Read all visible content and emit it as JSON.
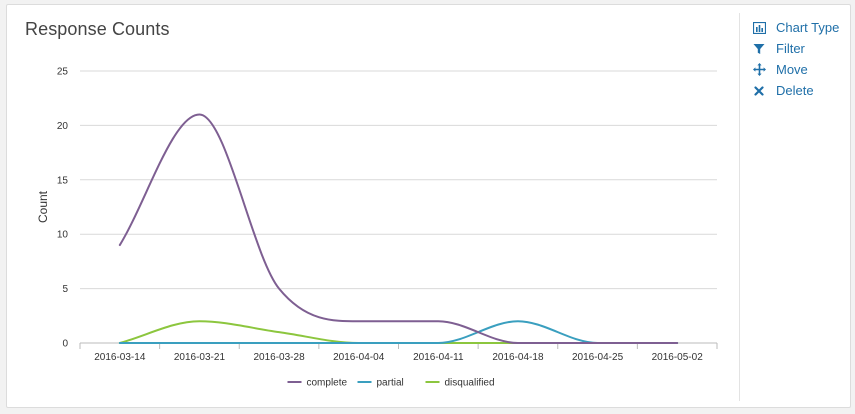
{
  "panel": {
    "title": "Response Counts"
  },
  "actions": [
    {
      "label": "Chart Type",
      "icon": "bar-chart-icon"
    },
    {
      "label": "Filter",
      "icon": "filter-icon"
    },
    {
      "label": "Move",
      "icon": "move-icon"
    },
    {
      "label": "Delete",
      "icon": "delete-icon"
    }
  ],
  "colors": {
    "accent": "#1f6fa8"
  },
  "chart_data": {
    "type": "line",
    "title": "",
    "xlabel": "",
    "ylabel": "Count",
    "categories": [
      "2016-03-14",
      "2016-03-21",
      "2016-03-28",
      "2016-04-04",
      "2016-04-11",
      "2016-04-18",
      "2016-04-25",
      "2016-05-02"
    ],
    "ylim": [
      0,
      25
    ],
    "yticks": [
      0,
      5,
      10,
      15,
      20,
      25
    ],
    "grid": true,
    "legend": "bottom",
    "smooth": true,
    "series": [
      {
        "name": "complete",
        "color": "#7e5f92",
        "values": [
          9,
          21,
          5,
          2,
          2,
          0,
          0,
          0
        ]
      },
      {
        "name": "partial",
        "color": "#3a9fbf",
        "values": [
          0,
          0,
          0,
          0,
          0,
          2,
          0,
          0
        ]
      },
      {
        "name": "disqualified",
        "color": "#8cc63e",
        "values": [
          0,
          2,
          1,
          0,
          0,
          0,
          0,
          0
        ]
      }
    ]
  }
}
